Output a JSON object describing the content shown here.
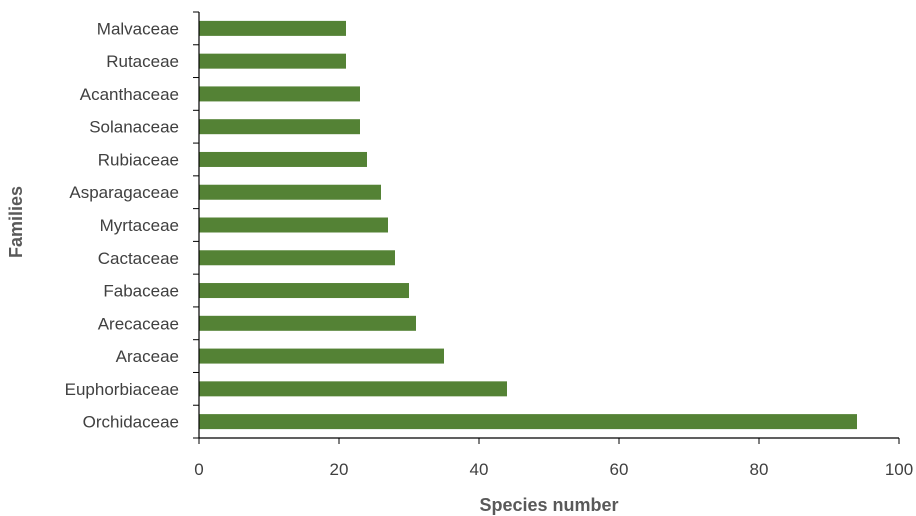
{
  "chart_data": {
    "type": "bar",
    "orientation": "horizontal",
    "categories": [
      "Orchidaceae",
      "Euphorbiaceae",
      "Araceae",
      "Arecaceae",
      "Fabaceae",
      "Cactaceae",
      "Myrtaceae",
      "Asparagaceae",
      "Rubiaceae",
      "Solanaceae",
      "Acanthaceae",
      "Rutaceae",
      "Malvaceae"
    ],
    "values": [
      94,
      44,
      35,
      31,
      30,
      28,
      27,
      26,
      24,
      23,
      23,
      21,
      21
    ],
    "xlabel": "Species number",
    "ylabel": "Families",
    "xlim": [
      0,
      100
    ],
    "xticks": [
      "0",
      "20",
      "40",
      "60",
      "80",
      "100"
    ],
    "grid": false,
    "legend": "none",
    "colors": {
      "bar": "#548235",
      "axis": "#000000",
      "text": "#404040",
      "title": "#595959"
    }
  }
}
